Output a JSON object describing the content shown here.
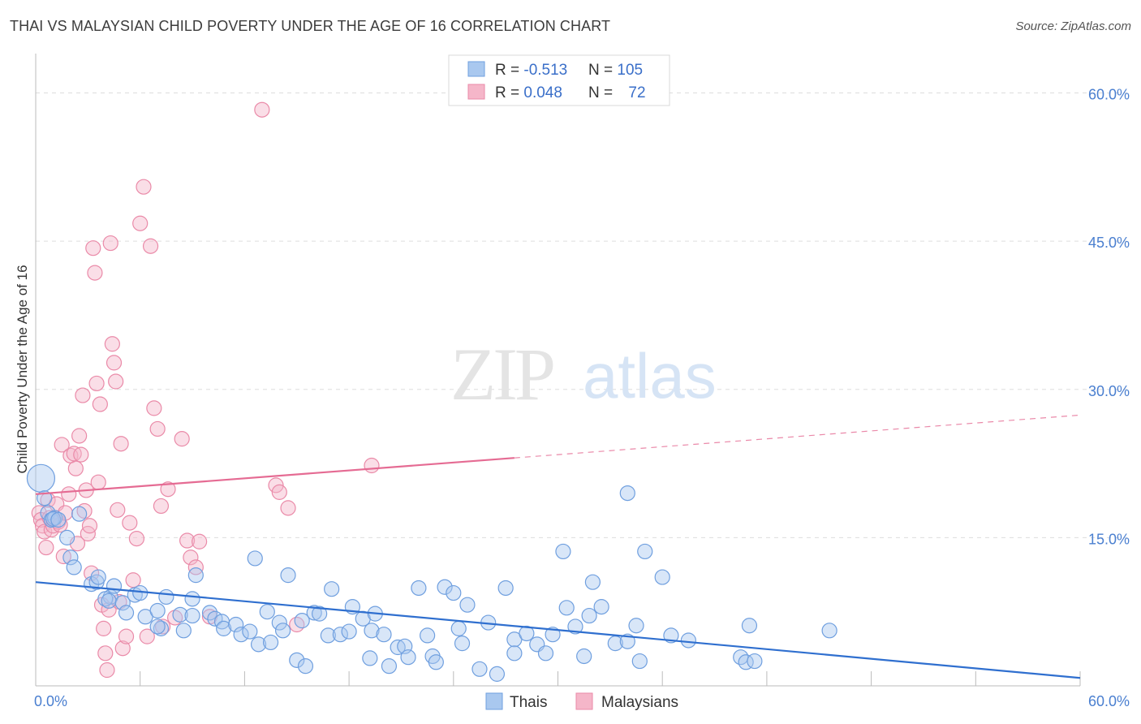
{
  "title": "THAI VS MALAYSIAN CHILD POVERTY UNDER THE AGE OF 16 CORRELATION CHART",
  "source": "Source: ZipAtlas.com",
  "watermark": {
    "zip": "ZIP",
    "atlas": "atlas"
  },
  "colors": {
    "thai_fill": "#a9c8ef",
    "thai_stroke": "#6f9fdf",
    "thai_line": "#2f6fcf",
    "malay_fill": "#f5b6c9",
    "malay_stroke": "#ea8aa8",
    "malay_line": "#e56b93",
    "tick_text": "#4a7fd0",
    "grid": "#dddddd"
  },
  "legend": {
    "rows": [
      {
        "r_label": "R = ",
        "r_value": "-0.513",
        "n_label": "N = ",
        "n_value": "105"
      },
      {
        "r_label": "R = ",
        "r_value": "0.048",
        "n_label": "N = ",
        "n_value": "72"
      }
    ]
  },
  "bottom_legend": [
    "Thais",
    "Malaysians"
  ],
  "chart_data": {
    "type": "scatter",
    "title": "THAI VS MALAYSIAN CHILD POVERTY UNDER THE AGE OF 16 CORRELATION CHART",
    "ylabel": "Child Poverty Under the Age of 16",
    "xlim": [
      0,
      60
    ],
    "ylim": [
      0,
      63
    ],
    "x_tick_labels": [
      "0.0%",
      "60.0%"
    ],
    "y_ticks": [
      15,
      30,
      45,
      60
    ],
    "y_tick_labels": [
      "15.0%",
      "30.0%",
      "45.0%",
      "60.0%"
    ],
    "grid": true,
    "legend_position": "top-center",
    "series": [
      {
        "name": "Thais",
        "r": -0.513,
        "n": 105,
        "trend": {
          "x": [
            0,
            60
          ],
          "y": [
            10.5,
            0.8
          ],
          "dashed_from": null
        },
        "points": [
          [
            0.3,
            21
          ],
          [
            0.5,
            19
          ],
          [
            0.7,
            17.5
          ],
          [
            0.9,
            16.8
          ],
          [
            1.1,
            17
          ],
          [
            2.5,
            17.4
          ],
          [
            1.0,
            16.9
          ],
          [
            1.3,
            16.8
          ],
          [
            1.8,
            15
          ],
          [
            2.0,
            13
          ],
          [
            2.2,
            12
          ],
          [
            3.2,
            10.3
          ],
          [
            3.5,
            10.5
          ],
          [
            3.6,
            11
          ],
          [
            4.3,
            9.0
          ],
          [
            4.0,
            8.8
          ],
          [
            4.5,
            10.1
          ],
          [
            4.2,
            8.6
          ],
          [
            5.0,
            8.4
          ],
          [
            5.2,
            7.4
          ],
          [
            5.7,
            9.2
          ],
          [
            6.0,
            9.4
          ],
          [
            6.3,
            7.0
          ],
          [
            7.5,
            9.0
          ],
          [
            7.0,
            7.6
          ],
          [
            8.3,
            7.2
          ],
          [
            7.2,
            5.8
          ],
          [
            7.0,
            6.0
          ],
          [
            8.5,
            5.6
          ],
          [
            9.0,
            8.8
          ],
          [
            9.2,
            11.2
          ],
          [
            9.0,
            7.1
          ],
          [
            10.0,
            7.4
          ],
          [
            10.3,
            6.8
          ],
          [
            10.7,
            6.5
          ],
          [
            10.8,
            5.8
          ],
          [
            11.5,
            6.2
          ],
          [
            11.8,
            5.2
          ],
          [
            12.3,
            5.5
          ],
          [
            12.8,
            4.2
          ],
          [
            12.6,
            12.9
          ],
          [
            13.3,
            7.5
          ],
          [
            13.5,
            4.4
          ],
          [
            14.0,
            6.4
          ],
          [
            14.2,
            5.6
          ],
          [
            14.5,
            11.2
          ],
          [
            15.0,
            2.6
          ],
          [
            15.3,
            6.6
          ],
          [
            15.5,
            2.0
          ],
          [
            16.0,
            7.4
          ],
          [
            16.3,
            7.3
          ],
          [
            16.8,
            5.1
          ],
          [
            17.0,
            9.8
          ],
          [
            17.5,
            5.2
          ],
          [
            18.0,
            5.5
          ],
          [
            18.2,
            8.0
          ],
          [
            18.8,
            6.8
          ],
          [
            19.3,
            5.6
          ],
          [
            19.5,
            7.3
          ],
          [
            19.2,
            2.8
          ],
          [
            20.0,
            5.2
          ],
          [
            20.3,
            2.0
          ],
          [
            20.8,
            3.9
          ],
          [
            21.2,
            4.0
          ],
          [
            21.4,
            2.9
          ],
          [
            22.0,
            9.9
          ],
          [
            22.5,
            5.1
          ],
          [
            22.8,
            3.0
          ],
          [
            23.0,
            2.4
          ],
          [
            23.5,
            10.0
          ],
          [
            24.0,
            9.4
          ],
          [
            24.3,
            5.8
          ],
          [
            24.5,
            4.3
          ],
          [
            24.8,
            8.2
          ],
          [
            25.5,
            1.7
          ],
          [
            26.0,
            6.4
          ],
          [
            26.5,
            1.2
          ],
          [
            27.0,
            9.9
          ],
          [
            27.5,
            4.7
          ],
          [
            27.5,
            3.3
          ],
          [
            28.2,
            5.3
          ],
          [
            28.8,
            4.2
          ],
          [
            29.3,
            3.3
          ],
          [
            29.7,
            5.2
          ],
          [
            30.5,
            7.9
          ],
          [
            31.0,
            6.0
          ],
          [
            31.5,
            3.0
          ],
          [
            32.5,
            8.0
          ],
          [
            33.3,
            4.3
          ],
          [
            34.0,
            4.5
          ],
          [
            34.5,
            6.1
          ],
          [
            34.7,
            2.5
          ],
          [
            36.5,
            5.1
          ],
          [
            37.5,
            4.6
          ],
          [
            40.5,
            2.9
          ],
          [
            40.8,
            2.4
          ],
          [
            41.3,
            2.5
          ],
          [
            41.0,
            6.1
          ],
          [
            45.6,
            5.6
          ],
          [
            35.0,
            13.6
          ],
          [
            36.0,
            11.0
          ],
          [
            34.0,
            19.5
          ],
          [
            30.3,
            13.6
          ],
          [
            32.0,
            10.5
          ],
          [
            31.8,
            7.1
          ]
        ]
      },
      {
        "name": "Malaysians",
        "r": 0.048,
        "n": 72,
        "trend": {
          "x": [
            0,
            60
          ],
          "y": [
            19.4,
            27.4
          ],
          "dashed_from": 27.5
        },
        "points": [
          [
            0.2,
            17.5
          ],
          [
            0.3,
            16.8
          ],
          [
            0.4,
            16.2
          ],
          [
            0.5,
            15.6
          ],
          [
            0.6,
            14.0
          ],
          [
            0.7,
            18.8
          ],
          [
            0.8,
            17.0
          ],
          [
            0.9,
            15.8
          ],
          [
            1.0,
            16.2
          ],
          [
            1.2,
            18.4
          ],
          [
            1.3,
            16.6
          ],
          [
            1.4,
            16.3
          ],
          [
            1.5,
            24.4
          ],
          [
            1.6,
            13.1
          ],
          [
            1.7,
            17.5
          ],
          [
            1.9,
            19.4
          ],
          [
            2.0,
            23.3
          ],
          [
            2.2,
            23.5
          ],
          [
            2.3,
            22.0
          ],
          [
            2.4,
            14.4
          ],
          [
            2.5,
            25.3
          ],
          [
            2.6,
            23.4
          ],
          [
            2.7,
            29.4
          ],
          [
            2.8,
            17.7
          ],
          [
            2.9,
            19.8
          ],
          [
            3.0,
            15.4
          ],
          [
            3.1,
            16.2
          ],
          [
            3.2,
            11.4
          ],
          [
            3.3,
            44.3
          ],
          [
            3.4,
            41.8
          ],
          [
            3.5,
            30.6
          ],
          [
            3.6,
            20.6
          ],
          [
            3.7,
            28.5
          ],
          [
            3.8,
            8.2
          ],
          [
            3.9,
            5.8
          ],
          [
            4.0,
            3.3
          ],
          [
            4.1,
            1.6
          ],
          [
            4.2,
            7.7
          ],
          [
            4.3,
            44.8
          ],
          [
            4.4,
            34.6
          ],
          [
            4.5,
            32.7
          ],
          [
            4.6,
            30.8
          ],
          [
            4.7,
            17.8
          ],
          [
            4.8,
            8.5
          ],
          [
            4.9,
            24.5
          ],
          [
            5.0,
            3.8
          ],
          [
            5.2,
            5.0
          ],
          [
            5.4,
            16.5
          ],
          [
            5.6,
            10.7
          ],
          [
            5.8,
            14.9
          ],
          [
            6.0,
            46.8
          ],
          [
            6.2,
            50.5
          ],
          [
            6.4,
            5.0
          ],
          [
            6.6,
            44.5
          ],
          [
            6.8,
            28.1
          ],
          [
            7.0,
            26.0
          ],
          [
            7.2,
            18.2
          ],
          [
            7.3,
            6.0
          ],
          [
            7.6,
            19.9
          ],
          [
            8.0,
            6.9
          ],
          [
            8.4,
            25.0
          ],
          [
            8.7,
            14.7
          ],
          [
            8.9,
            13.0
          ],
          [
            9.2,
            12.0
          ],
          [
            9.4,
            14.6
          ],
          [
            10.0,
            7.0
          ],
          [
            13.0,
            58.3
          ],
          [
            13.8,
            20.3
          ],
          [
            14.0,
            19.6
          ],
          [
            14.5,
            18.0
          ],
          [
            15.0,
            6.2
          ],
          [
            19.3,
            22.3
          ]
        ]
      }
    ]
  }
}
